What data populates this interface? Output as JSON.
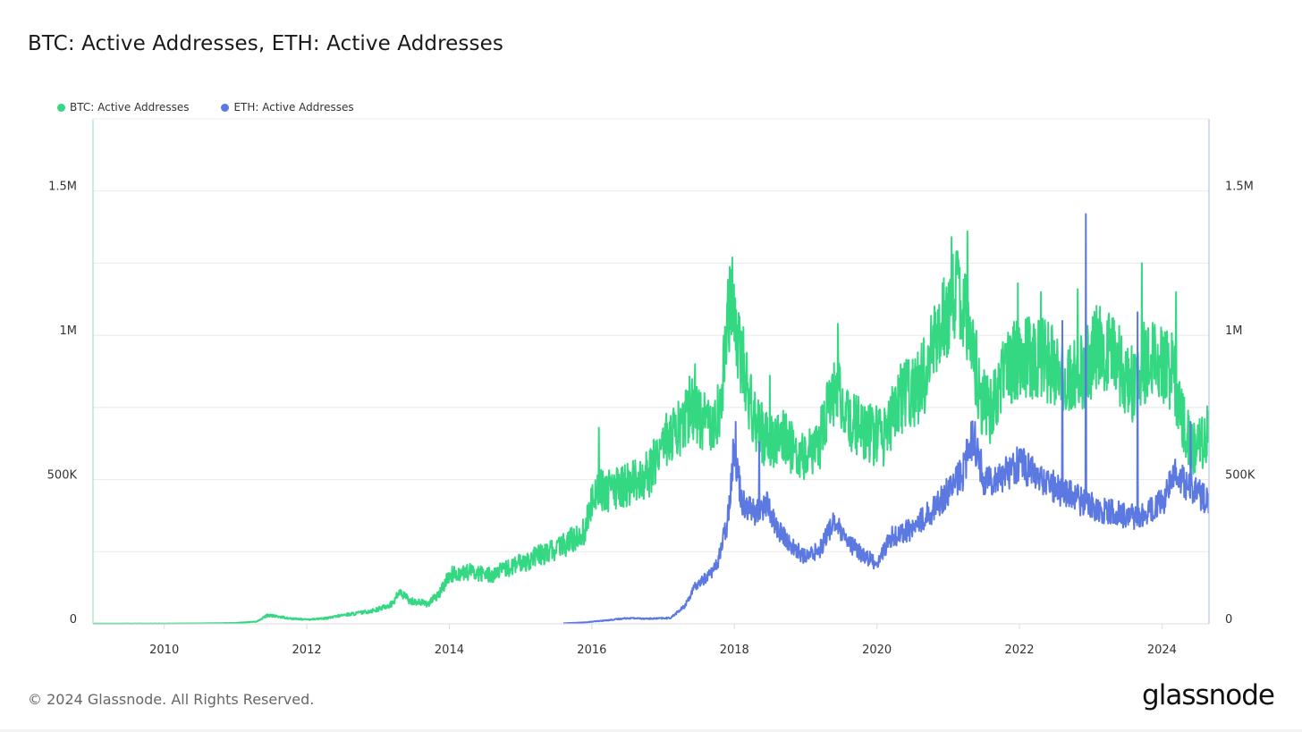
{
  "header": {
    "title": "BTC: Active Addresses, ETH: Active Addresses"
  },
  "footer": {
    "copyright": "© 2024 Glassnode. All Rights Reserved.",
    "brand": "glassnode"
  },
  "chart_data": {
    "type": "line",
    "title": "BTC: Active Addresses, ETH: Active Addresses",
    "xlabel": "",
    "ylabel": "",
    "xlim": [
      2009.0,
      2024.66
    ],
    "ylim": [
      0,
      1750000
    ],
    "grid": true,
    "legend_position": "top-left",
    "x_ticks": [
      2010,
      2012,
      2014,
      2016,
      2018,
      2020,
      2022,
      2024
    ],
    "x_tick_labels": [
      "2010",
      "2012",
      "2014",
      "2016",
      "2018",
      "2020",
      "2022",
      "2024"
    ],
    "y_gridlines": [
      0,
      250000,
      500000,
      750000,
      1000000,
      1250000,
      1500000
    ],
    "y_ticks": [
      0,
      500000,
      1000000,
      1500000
    ],
    "y_tick_labels_left": [
      "0",
      "500K",
      "1M",
      "1.5M"
    ],
    "y_tick_labels_right": [
      "0",
      "500K",
      "1M",
      "1.5M"
    ],
    "series": [
      {
        "name": "BTC: Active Addresses",
        "color": "#35d882",
        "axis": "left",
        "volatility": 0.16,
        "points": [
          [
            2009.0,
            500
          ],
          [
            2009.5,
            1000
          ],
          [
            2010.0,
            1000
          ],
          [
            2010.5,
            1500
          ],
          [
            2011.0,
            3000
          ],
          [
            2011.3,
            8000
          ],
          [
            2011.45,
            30000
          ],
          [
            2011.6,
            25000
          ],
          [
            2011.8,
            18000
          ],
          [
            2012.0,
            15000
          ],
          [
            2012.3,
            20000
          ],
          [
            2012.5,
            30000
          ],
          [
            2012.8,
            40000
          ],
          [
            2013.0,
            50000
          ],
          [
            2013.2,
            70000
          ],
          [
            2013.3,
            110000
          ],
          [
            2013.45,
            80000
          ],
          [
            2013.7,
            70000
          ],
          [
            2013.85,
            100000
          ],
          [
            2014.0,
            170000
          ],
          [
            2014.3,
            180000
          ],
          [
            2014.6,
            170000
          ],
          [
            2015.0,
            210000
          ],
          [
            2015.3,
            240000
          ],
          [
            2015.6,
            270000
          ],
          [
            2015.9,
            320000
          ],
          [
            2016.05,
            470000
          ],
          [
            2016.2,
            460000
          ],
          [
            2016.5,
            480000
          ],
          [
            2016.8,
            520000
          ],
          [
            2017.0,
            640000
          ],
          [
            2017.2,
            660000
          ],
          [
            2017.4,
            760000
          ],
          [
            2017.6,
            700000
          ],
          [
            2017.8,
            740000
          ],
          [
            2017.95,
            1150000
          ],
          [
            2018.05,
            1000000
          ],
          [
            2018.2,
            780000
          ],
          [
            2018.4,
            650000
          ],
          [
            2018.7,
            640000
          ],
          [
            2019.0,
            560000
          ],
          [
            2019.2,
            640000
          ],
          [
            2019.4,
            820000
          ],
          [
            2019.6,
            700000
          ],
          [
            2019.9,
            660000
          ],
          [
            2020.1,
            640000
          ],
          [
            2020.3,
            780000
          ],
          [
            2020.6,
            820000
          ],
          [
            2020.8,
            950000
          ],
          [
            2021.0,
            1080000
          ],
          [
            2021.15,
            1180000
          ],
          [
            2021.3,
            1060000
          ],
          [
            2021.45,
            780000
          ],
          [
            2021.6,
            740000
          ],
          [
            2021.8,
            880000
          ],
          [
            2022.0,
            920000
          ],
          [
            2022.3,
            930000
          ],
          [
            2022.6,
            860000
          ],
          [
            2022.9,
            880000
          ],
          [
            2023.1,
            960000
          ],
          [
            2023.35,
            920000
          ],
          [
            2023.6,
            820000
          ],
          [
            2023.8,
            930000
          ],
          [
            2024.0,
            900000
          ],
          [
            2024.15,
            880000
          ],
          [
            2024.3,
            700000
          ],
          [
            2024.45,
            600000
          ],
          [
            2024.66,
            660000
          ]
        ],
        "spikes": [
          [
            2016.1,
            680000
          ],
          [
            2017.45,
            900000
          ],
          [
            2017.97,
            1270000
          ],
          [
            2018.5,
            860000
          ],
          [
            2019.45,
            1040000
          ],
          [
            2021.05,
            1340000
          ],
          [
            2021.27,
            1360000
          ],
          [
            2021.98,
            1180000
          ],
          [
            2022.3,
            1150000
          ],
          [
            2022.82,
            1160000
          ],
          [
            2023.72,
            1250000
          ],
          [
            2024.2,
            1150000
          ]
        ]
      },
      {
        "name": "ETH: Active Addresses",
        "color": "#5b79e0",
        "axis": "right",
        "volatility": 0.12,
        "points": [
          [
            2015.6,
            2000
          ],
          [
            2015.9,
            5000
          ],
          [
            2016.2,
            12000
          ],
          [
            2016.5,
            20000
          ],
          [
            2016.8,
            18000
          ],
          [
            2017.1,
            20000
          ],
          [
            2017.3,
            60000
          ],
          [
            2017.45,
            130000
          ],
          [
            2017.6,
            160000
          ],
          [
            2017.75,
            200000
          ],
          [
            2017.9,
            350000
          ],
          [
            2018.0,
            620000
          ],
          [
            2018.1,
            430000
          ],
          [
            2018.3,
            380000
          ],
          [
            2018.45,
            420000
          ],
          [
            2018.6,
            330000
          ],
          [
            2018.8,
            270000
          ],
          [
            2019.0,
            230000
          ],
          [
            2019.2,
            260000
          ],
          [
            2019.4,
            360000
          ],
          [
            2019.55,
            290000
          ],
          [
            2019.8,
            240000
          ],
          [
            2020.0,
            210000
          ],
          [
            2020.2,
            300000
          ],
          [
            2020.5,
            330000
          ],
          [
            2020.8,
            400000
          ],
          [
            2021.0,
            460000
          ],
          [
            2021.2,
            520000
          ],
          [
            2021.35,
            660000
          ],
          [
            2021.5,
            500000
          ],
          [
            2021.8,
            520000
          ],
          [
            2022.0,
            560000
          ],
          [
            2022.3,
            500000
          ],
          [
            2022.6,
            460000
          ],
          [
            2022.9,
            420000
          ],
          [
            2023.1,
            400000
          ],
          [
            2023.4,
            380000
          ],
          [
            2023.7,
            370000
          ],
          [
            2024.0,
            420000
          ],
          [
            2024.2,
            520000
          ],
          [
            2024.4,
            470000
          ],
          [
            2024.66,
            420000
          ]
        ],
        "spikes": [
          [
            2018.02,
            700000
          ],
          [
            2018.35,
            630000
          ],
          [
            2021.38,
            700000
          ],
          [
            2022.6,
            1050000
          ],
          [
            2022.93,
            1420000
          ],
          [
            2023.66,
            1080000
          ],
          [
            2024.4,
            700000
          ]
        ]
      }
    ]
  }
}
